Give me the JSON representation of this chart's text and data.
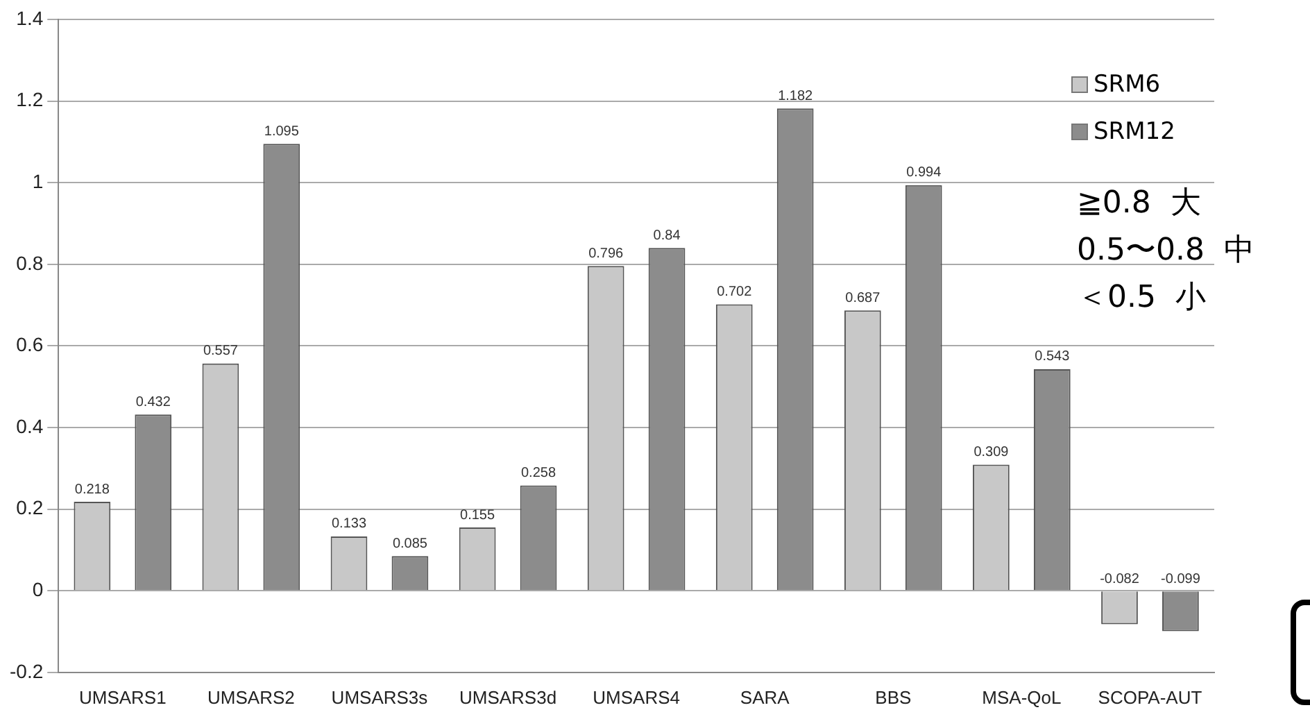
{
  "chart_data": {
    "type": "bar",
    "categories": [
      "UMSARS1",
      "UMSARS2",
      "UMSARS3s",
      "UMSARS3d",
      "UMSARS4",
      "SARA",
      "BBS",
      "MSA-QoL",
      "SCOPA-AUT"
    ],
    "series": [
      {
        "name": "SRM6",
        "color": "#c8c8c8",
        "values": [
          0.218,
          0.557,
          0.133,
          0.155,
          0.796,
          0.702,
          0.687,
          0.309,
          -0.082
        ]
      },
      {
        "name": "SRM12",
        "color": "#8c8c8c",
        "values": [
          0.432,
          1.095,
          0.085,
          0.258,
          0.84,
          1.182,
          0.994,
          0.543,
          -0.099
        ]
      }
    ],
    "ylim": [
      -0.2,
      1.4
    ],
    "yticks": [
      -0.2,
      0,
      0.2,
      0.4,
      0.6,
      0.8,
      1,
      1.2,
      1.4
    ],
    "grid": "y",
    "legend": "top right",
    "data_labels": true,
    "annotations": [
      "≧0.8  大",
      "0.5〜0.8  中",
      "＜0.5  小"
    ]
  }
}
